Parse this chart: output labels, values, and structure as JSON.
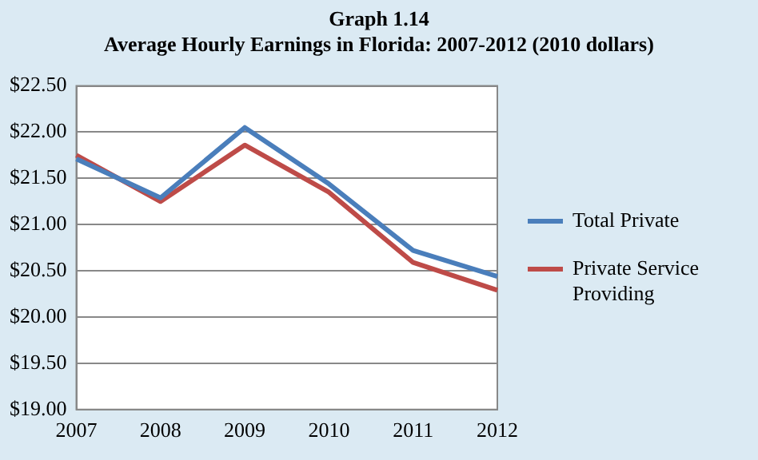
{
  "chart_data": {
    "type": "line",
    "title": "Graph 1.14",
    "subtitle": "Average Hourly Earnings in Florida: 2007-2012 (2010 dollars)",
    "categories": [
      "2007",
      "2008",
      "2009",
      "2010",
      "2011",
      "2012"
    ],
    "series": [
      {
        "name": "Total Private",
        "color": "#4a7ebb",
        "values": [
          21.71,
          21.29,
          22.05,
          21.44,
          20.72,
          20.44
        ]
      },
      {
        "name": "Private Service Providing",
        "color": "#be4b48",
        "values": [
          21.75,
          21.25,
          21.86,
          21.35,
          20.59,
          20.29
        ]
      }
    ],
    "ylim": [
      19,
      22.5
    ],
    "yticks": [
      {
        "value": 19,
        "label": "$19.00"
      },
      {
        "value": 19.5,
        "label": "$19.50"
      },
      {
        "value": 20,
        "label": "$20.00"
      },
      {
        "value": 20.5,
        "label": "$20.50"
      },
      {
        "value": 21,
        "label": "$21.00"
      },
      {
        "value": 21.5,
        "label": "$21.50"
      },
      {
        "value": 22,
        "label": "$22.00"
      },
      {
        "value": 22.5,
        "label": "$22.50"
      }
    ],
    "grid": "y",
    "legend": "right",
    "marker": "none",
    "line_style": "solid"
  }
}
